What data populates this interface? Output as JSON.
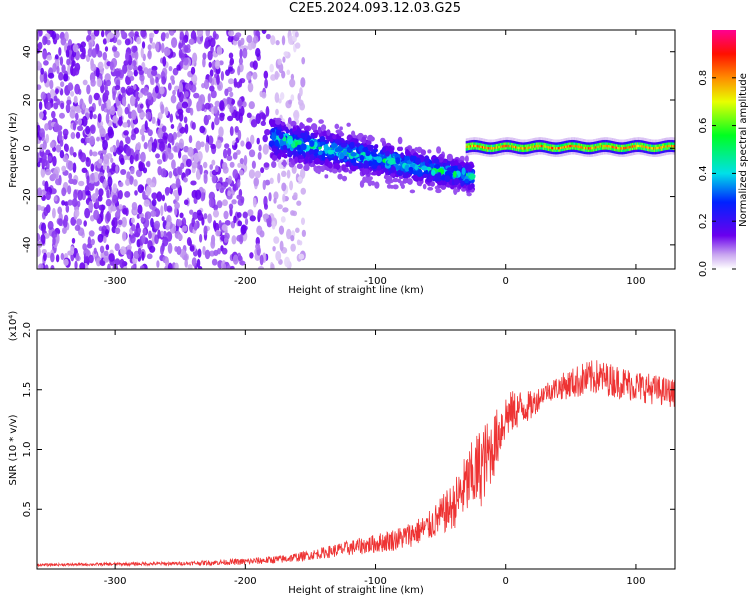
{
  "title": "C2E5.2024.093.12.03.G25",
  "chart_data": [
    {
      "type": "heatmap",
      "title": "C2E5.2024.093.12.03.G25",
      "xlabel": "Height of straight line (km)",
      "ylabel": "Frequency (Hz)",
      "xlim": [
        -360,
        130
      ],
      "ylim": [
        -50,
        49
      ],
      "xticks": [
        -300,
        -200,
        -100,
        0,
        100
      ],
      "xtick_labels": [
        "-300",
        "-200",
        "-100",
        "0",
        "100"
      ],
      "yticks": [
        -40,
        -20,
        0,
        20,
        40
      ],
      "ytick_labels": [
        "-40",
        "-20",
        "0",
        "20",
        "40"
      ],
      "colorbar": {
        "label": "Normalized spectral amplitude",
        "range": [
          0,
          1
        ],
        "ticks": [
          0.0,
          0.2,
          0.4,
          0.6,
          0.8
        ],
        "tick_labels": [
          "0.0",
          "0.2",
          "0.4",
          "0.6",
          "0.8"
        ],
        "colormap": "rainbow (white-purple-blue-cyan-green-yellow-orange-red-magenta)"
      },
      "regions": [
        {
          "x_range": [
            -360,
            -180
          ],
          "frequency_range": [
            -50,
            49
          ],
          "amplitude": [
            0.05,
            0.15
          ],
          "description": "broadband noise"
        },
        {
          "x_range": [
            -180,
            -25
          ],
          "center_frequency": [
            4,
            -12
          ],
          "amplitude": [
            0.1,
            0.5
          ],
          "description": "signal band drifting downward"
        },
        {
          "x_range": [
            -30,
            130
          ],
          "center_frequency": [
            0,
            1
          ],
          "amplitude": [
            0.6,
            0.95
          ],
          "description": "locked narrow line"
        }
      ]
    },
    {
      "type": "line",
      "xlabel": "Height of straight line (km)",
      "ylabel": "SNR (10 * v/v)",
      "y_multiplier": "(x10⁴)",
      "xlim": [
        -360,
        130
      ],
      "ylim": [
        0,
        2.0
      ],
      "xticks": [
        -300,
        -200,
        -100,
        0,
        100
      ],
      "xtick_labels": [
        "-300",
        "-200",
        "-100",
        "0",
        "100"
      ],
      "yticks": [
        0.5,
        1.0,
        1.5,
        2.0
      ],
      "ytick_labels": [
        "0.5",
        "1.0",
        "1.5",
        "2.0"
      ],
      "color": "#ee3333",
      "envelope": {
        "x": [
          -360,
          -250,
          -200,
          -170,
          -150,
          -120,
          -100,
          -80,
          -60,
          -40,
          -30,
          -20,
          -10,
          0,
          10,
          20,
          30,
          50,
          70,
          100,
          130
        ],
        "y": [
          0.03,
          0.04,
          0.05,
          0.07,
          0.1,
          0.15,
          0.18,
          0.22,
          0.3,
          0.45,
          0.6,
          0.7,
          0.9,
          1.2,
          1.28,
          1.32,
          1.45,
          1.5,
          1.55,
          1.48,
          1.42
        ]
      },
      "noise_amplitude": {
        "x": [
          -360,
          -250,
          -150,
          -100,
          -60,
          -40,
          -20,
          0,
          30,
          60,
          130
        ],
        "y": [
          0.01,
          0.015,
          0.04,
          0.08,
          0.12,
          0.2,
          0.35,
          0.2,
          0.08,
          0.15,
          0.12
        ]
      }
    }
  ]
}
